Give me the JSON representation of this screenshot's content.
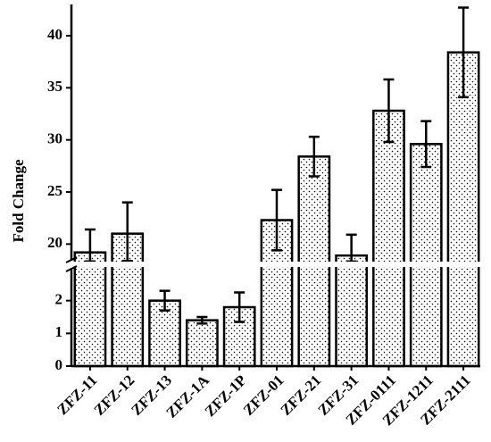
{
  "chart_data": {
    "type": "bar",
    "y_label": "Fold Change",
    "categories": [
      "ZFZ-11",
      "ZFZ-12",
      "ZFZ-13",
      "ZFZ-1A",
      "ZFZ-1P",
      "ZFZ-01",
      "ZFZ-21",
      "ZFZ-31",
      "ZFZ-0111",
      "ZFZ-1211",
      "ZFZ-2111"
    ],
    "values": [
      19.2,
      21.0,
      2.0,
      1.4,
      1.8,
      22.3,
      28.4,
      18.9,
      32.8,
      29.6,
      38.4
    ],
    "errors": [
      2.2,
      3.0,
      0.3,
      0.1,
      0.45,
      2.9,
      1.9,
      2.0,
      3.0,
      2.2,
      4.3
    ],
    "color": "#000000",
    "y_segments": [
      {
        "ylim": [
          0,
          3
        ],
        "yticks": [
          0,
          1,
          2
        ]
      },
      {
        "ylim": [
          18.4,
          43
        ],
        "yticks": [
          20,
          25,
          30,
          35,
          40
        ]
      }
    ]
  }
}
